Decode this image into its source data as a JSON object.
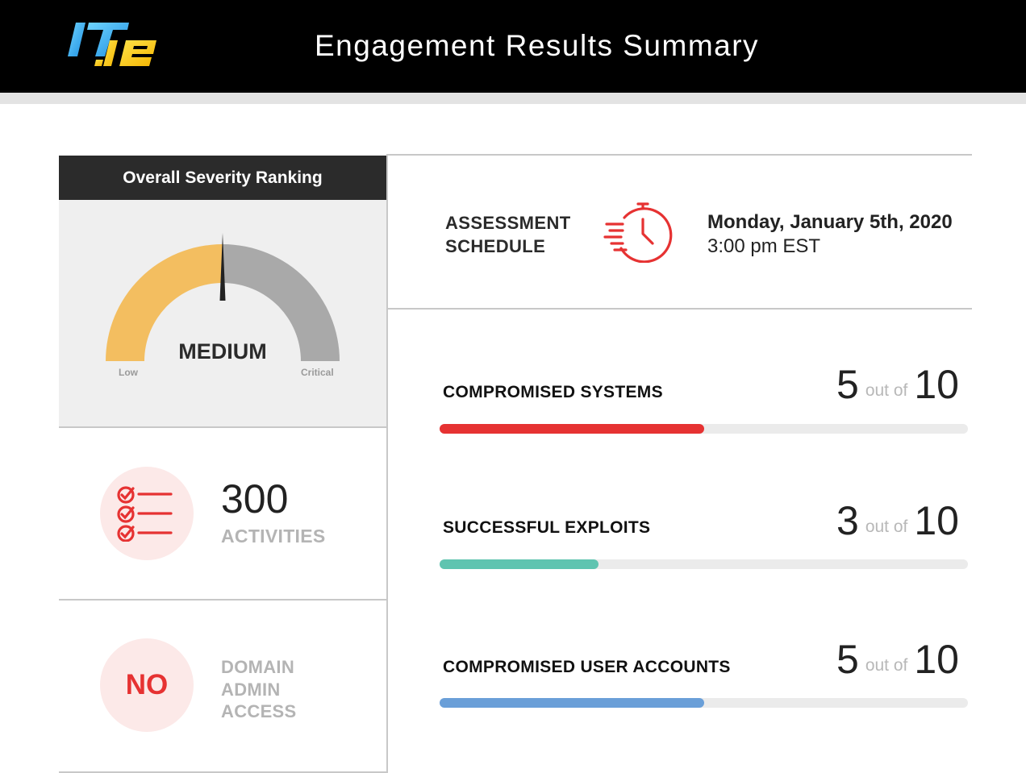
{
  "header": {
    "logo_text": "ITIE",
    "title": "Engagement Results Summary"
  },
  "severity": {
    "heading": "Overall Severity Ranking",
    "level": "MEDIUM",
    "low_label": "Low",
    "critical_label": "Critical",
    "gauge_fraction": 0.5,
    "colors": {
      "filled": "#f3be60",
      "empty": "#a9a9a9",
      "needle": "#222222"
    }
  },
  "activities": {
    "count": "300",
    "label": "ACTIVITIES",
    "icon": "checklist-icon"
  },
  "domain_admin": {
    "value": "NO",
    "label_lines": [
      "DOMAIN",
      "ADMIN",
      "ACCESS"
    ]
  },
  "schedule": {
    "label_lines": [
      "ASSESSMENT",
      "SCHEDULE"
    ],
    "icon": "fast-clock-icon",
    "date": "Monday, January 5th, 2020",
    "time": "3:00 pm EST"
  },
  "metrics": [
    {
      "label": "COMPROMISED SYSTEMS",
      "value": "5",
      "out_of_text": "out of",
      "max": "10",
      "fraction": 0.5,
      "color": "#e63232"
    },
    {
      "label": "SUCCESSFUL EXPLOITS",
      "value": "3",
      "out_of_text": "out of",
      "max": "10",
      "fraction": 0.3,
      "color": "#5fc4b0"
    },
    {
      "label": "COMPROMISED USER ACCOUNTS",
      "value": "5",
      "out_of_text": "out of",
      "max": "10",
      "fraction": 0.5,
      "color": "#6a9fd8"
    }
  ],
  "colors": {
    "accent_red": "#e63232",
    "header_bg": "#000000",
    "panel_dark": "#2b2b2b",
    "muted_text": "#b4b4b4"
  }
}
